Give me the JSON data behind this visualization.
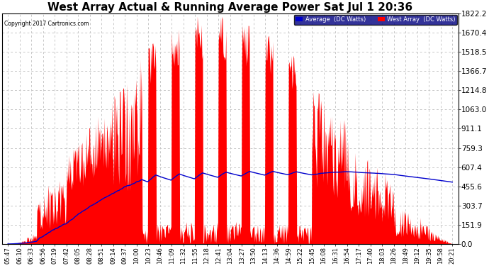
{
  "title": "West Array Actual & Running Average Power Sat Jul 1 20:36",
  "copyright": "Copyright 2017 Cartronics.com",
  "legend_avg": "Average  (DC Watts)",
  "legend_west": "West Array  (DC Watts)",
  "ylabel_ticks": [
    0.0,
    151.9,
    303.7,
    455.6,
    607.4,
    759.3,
    911.1,
    1063.0,
    1214.8,
    1366.7,
    1518.5,
    1670.4,
    1822.2
  ],
  "ymax": 1822.2,
  "ymin": 0.0,
  "bg_color": "#ffffff",
  "plot_bg_color": "#ffffff",
  "grid_color": "#c8c8c8",
  "red_color": "#ff0000",
  "blue_color": "#0000cc",
  "title_fontsize": 11,
  "xlabel_fontsize": 6,
  "ylabel_fontsize": 7.5,
  "xtick_labels": [
    "05:47",
    "06:10",
    "06:33",
    "06:56",
    "07:19",
    "07:42",
    "08:05",
    "08:28",
    "08:51",
    "09:14",
    "09:37",
    "10:00",
    "10:23",
    "10:46",
    "11:09",
    "11:32",
    "11:55",
    "12:18",
    "12:41",
    "13:04",
    "13:27",
    "13:50",
    "14:13",
    "14:36",
    "14:59",
    "15:22",
    "15:45",
    "16:08",
    "16:31",
    "16:54",
    "17:17",
    "17:40",
    "18:03",
    "18:26",
    "18:49",
    "19:12",
    "19:35",
    "19:58",
    "20:21"
  ]
}
